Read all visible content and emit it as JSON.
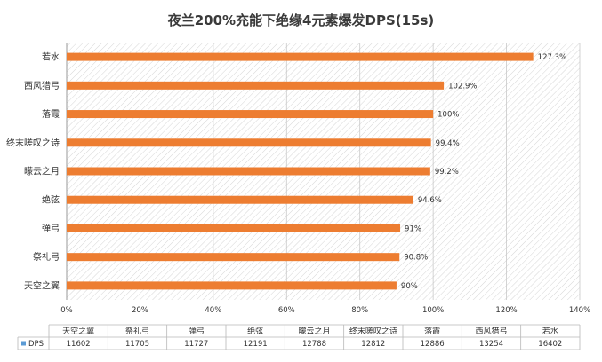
{
  "chart_data": {
    "type": "bar",
    "orientation": "horizontal",
    "title": "夜兰200%充能下绝缘4元素爆发DPS(15s)",
    "categories": [
      "若水",
      "西风猎弓",
      "落霞",
      "终末嗟叹之诗",
      "曚云之月",
      "绝弦",
      "弹弓",
      "祭礼弓",
      "天空之翼"
    ],
    "values": [
      127.3,
      102.9,
      100,
      99.4,
      99.2,
      94.6,
      91,
      90.8,
      90
    ],
    "value_labels": [
      "127.3%",
      "102.9%",
      "100%",
      "99.4%",
      "99.2%",
      "94.6%",
      "91%",
      "90.8%",
      "90%"
    ],
    "xlim": [
      0,
      140
    ],
    "x_ticks": [
      "0%",
      "20%",
      "40%",
      "60%",
      "80%",
      "100%",
      "120%",
      "140%"
    ],
    "grid": true,
    "bar_color": "#ED7D31",
    "table": {
      "series_name": "DPS",
      "series_color": "#5B9BD5",
      "columns": [
        "天空之翼",
        "祭礼弓",
        "弹弓",
        "绝弦",
        "曚云之月",
        "终末嗟叹之诗",
        "落霞",
        "西风猎弓",
        "若水"
      ],
      "values": [
        11602,
        11705,
        11727,
        12191,
        12788,
        12812,
        12886,
        13254,
        16402
      ]
    }
  }
}
